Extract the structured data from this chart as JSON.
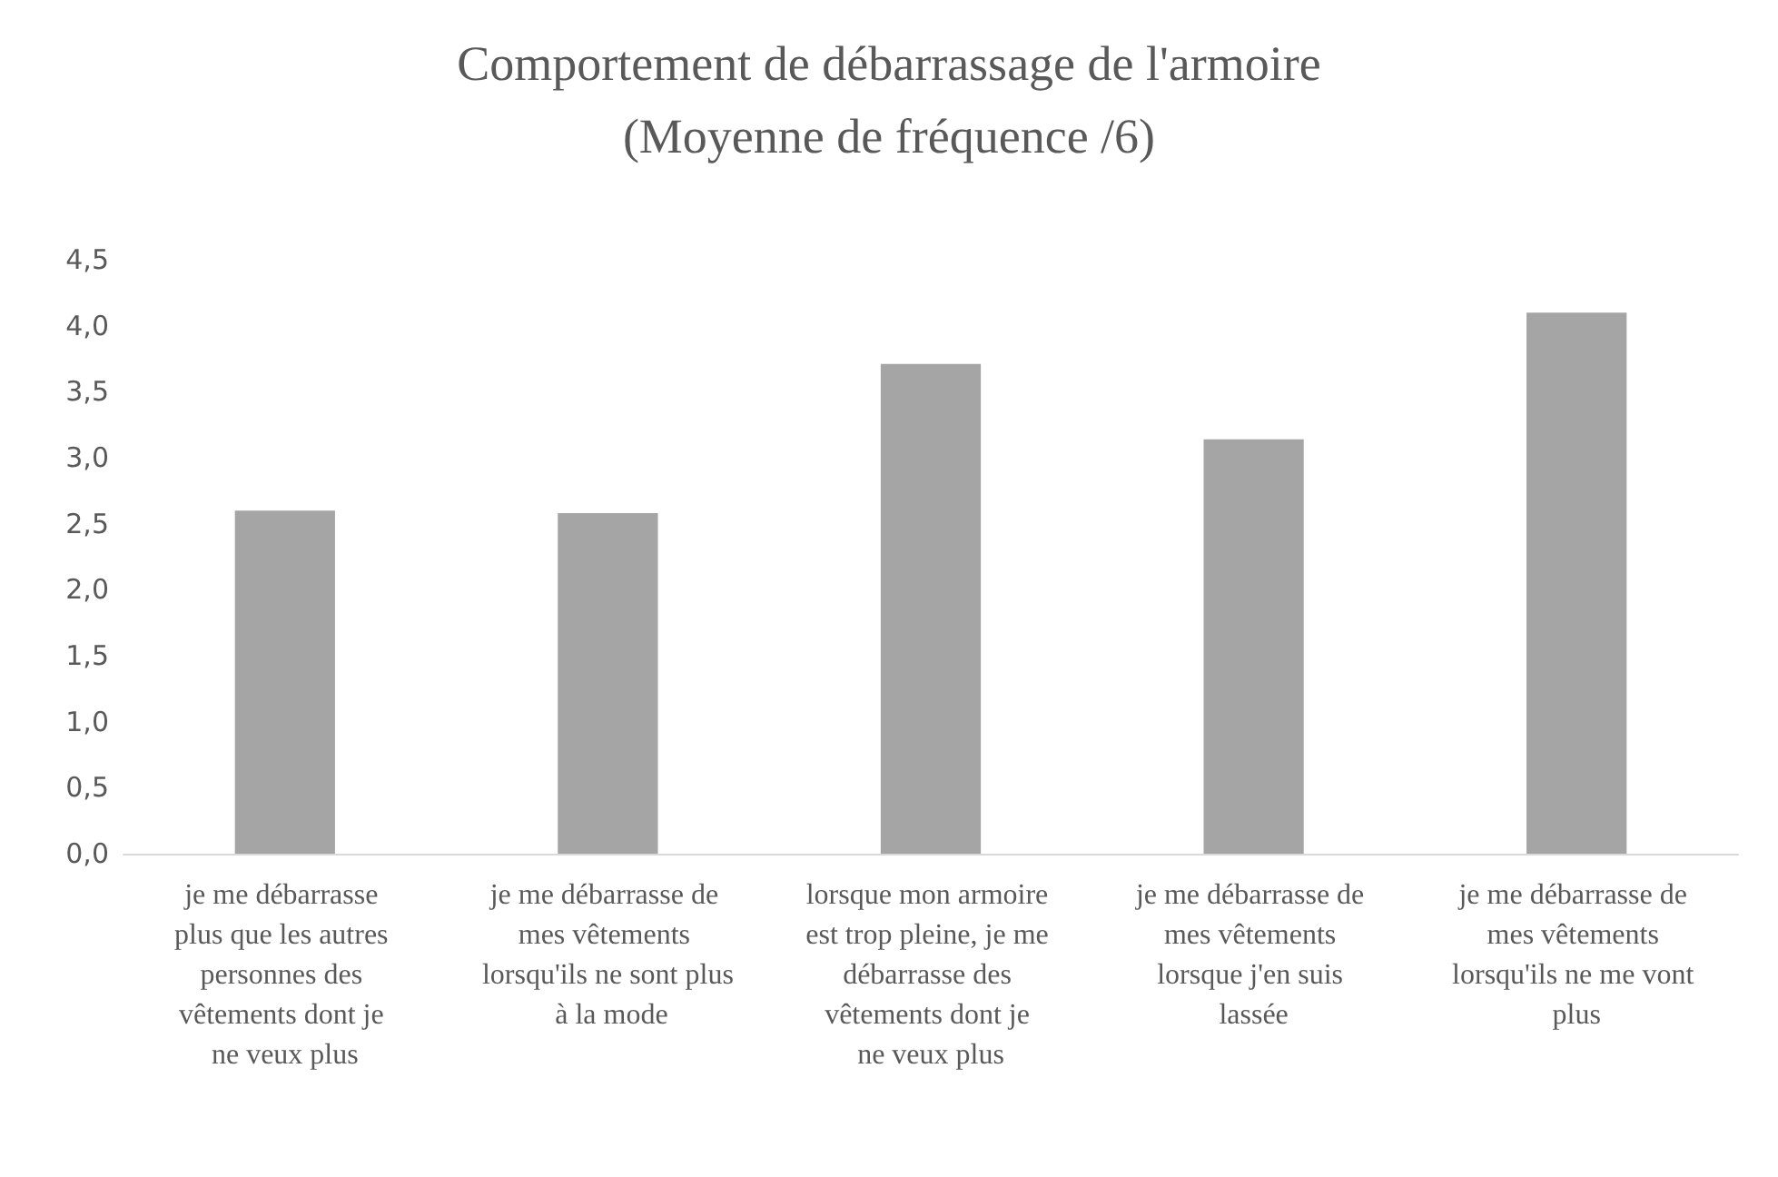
{
  "chart_data": {
    "type": "bar",
    "title": "Comportement de débarrassage de l'armoire\n(Moyenne de fréquence /6)",
    "categories": [
      "je me débarrasse plus que les autres personnes des vêtements dont je ne veux plus",
      "je me débarrasse de mes vêtements lorsqu'ils ne sont plus à la mode",
      "lorsque mon armoire est trop pleine, je me débarrasse des vêtements dont je ne veux plus",
      "je me débarrasse de mes vêtements lorsque j'en suis lassée",
      "je me débarrasse de mes vêtements lorsqu'ils ne me vont plus"
    ],
    "values": [
      2.6,
      2.58,
      3.71,
      3.14,
      4.1
    ],
    "color": "#a5a5a5",
    "ylim": [
      0,
      4.5
    ],
    "yticks": [
      {
        "value": 0,
        "label": "0,0"
      },
      {
        "value": 0.5,
        "label": "0,5"
      },
      {
        "value": 1,
        "label": "1,0"
      },
      {
        "value": 1.5,
        "label": "1,5"
      },
      {
        "value": 2,
        "label": "2,0"
      },
      {
        "value": 2.5,
        "label": "2,5"
      },
      {
        "value": 3,
        "label": "3,0"
      },
      {
        "value": 3.5,
        "label": "3,5"
      },
      {
        "value": 4,
        "label": "4,0"
      },
      {
        "value": 4.5,
        "label": "4,5"
      }
    ],
    "grid": false
  }
}
